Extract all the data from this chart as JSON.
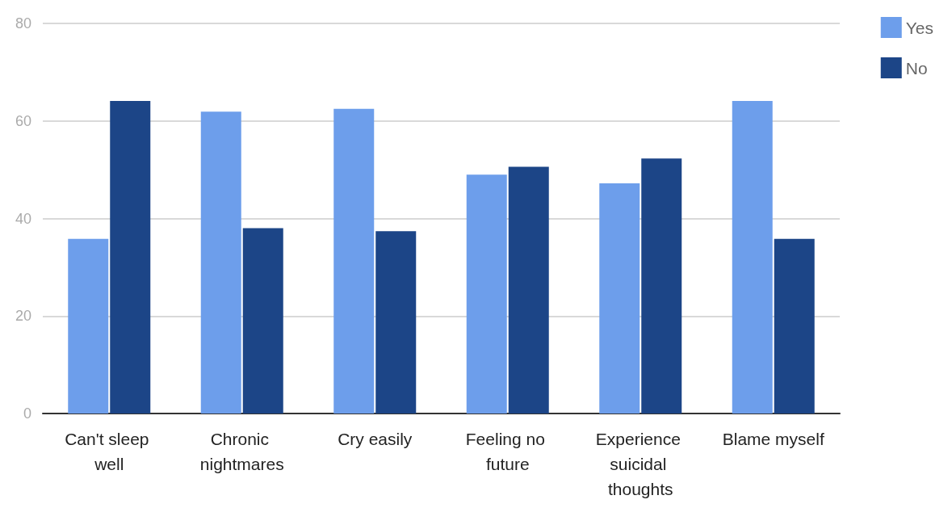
{
  "chart_data": {
    "type": "bar",
    "categories": [
      "Can't sleep well",
      "Chronic nightmares",
      "Cry easily",
      "Feeling no future",
      "Experience suicidal thoughts",
      "Blame myself"
    ],
    "series": [
      {
        "name": "Yes",
        "color": "#6d9eeb",
        "values": [
          35.8,
          61.9,
          62.5,
          49.0,
          47.2,
          64.1
        ]
      },
      {
        "name": "No",
        "color": "#1c4587",
        "values": [
          64.1,
          38.0,
          37.4,
          50.6,
          52.3,
          35.8
        ]
      }
    ],
    "ylim": [
      0,
      80
    ],
    "yticks": [
      0,
      20,
      40,
      60,
      80
    ],
    "grid": "y",
    "legend": "top right"
  }
}
